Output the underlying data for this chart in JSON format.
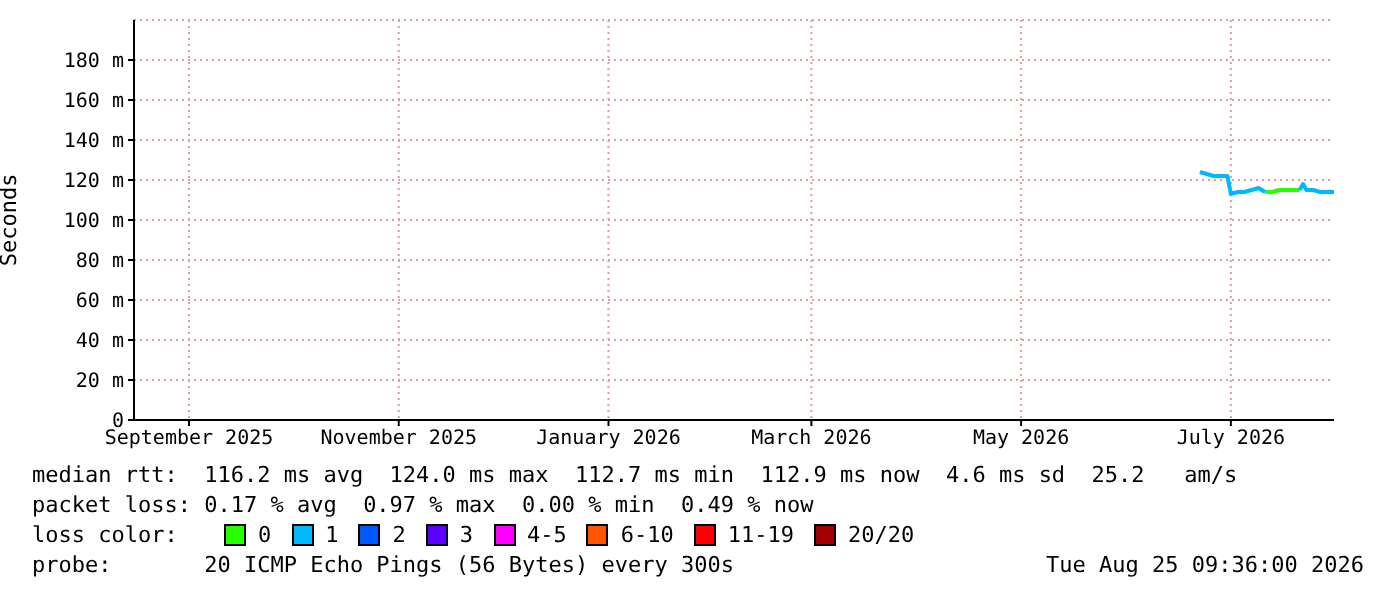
{
  "chart_data": {
    "type": "line",
    "ylabel": "Seconds",
    "legend_title": "loss color:",
    "legend": "bottom",
    "grid": true,
    "marker": "none",
    "line_style": "solid",
    "xlim": [
      "2025-08-16",
      "2026-07-31"
    ],
    "xticks": [
      {
        "value": "2025-09-01",
        "label": "September 2025"
      },
      {
        "value": "2025-11-01",
        "label": "November 2025"
      },
      {
        "value": "2026-01-01",
        "label": "January 2026"
      },
      {
        "value": "2026-03-01",
        "label": "March 2026"
      },
      {
        "value": "2026-05-01",
        "label": "May 2026"
      },
      {
        "value": "2026-07-01",
        "label": "July 2026"
      }
    ],
    "ylim": [
      0,
      200
    ],
    "yticks": [
      0,
      {
        "value": 20,
        "label": "20 m"
      },
      {
        "value": 40,
        "label": "40 m"
      },
      {
        "value": 60,
        "label": "60 m"
      },
      {
        "value": 80,
        "label": "80 m"
      },
      {
        "value": 100,
        "label": "100 m"
      },
      {
        "value": 120,
        "label": "120 m"
      },
      {
        "value": 140,
        "label": "140 m"
      },
      {
        "value": 160,
        "label": "160 m"
      },
      {
        "value": 180,
        "label": "180 m"
      }
    ],
    "x": [
      "2026-06-22",
      "2026-06-24",
      "2026-06-26",
      "2026-06-28",
      "2026-06-30",
      "2026-07-01",
      "2026-07-03",
      "2026-07-05",
      "2026-07-07",
      "2026-07-09",
      "2026-07-11",
      "2026-07-13",
      "2026-07-15",
      "2026-07-17",
      "2026-07-19",
      "2026-07-21",
      "2026-07-22",
      "2026-07-23",
      "2026-07-25",
      "2026-07-27",
      "2026-07-29",
      "2026-07-31"
    ],
    "series": [
      {
        "name": "0",
        "color": "#26ff00",
        "values": [
          null,
          null,
          null,
          null,
          null,
          null,
          null,
          null,
          null,
          null,
          114,
          114,
          115,
          115,
          115,
          115,
          null,
          null,
          null,
          null,
          null,
          null
        ]
      },
      {
        "name": "1",
        "color": "#00b8ff",
        "values": [
          124,
          123,
          122,
          122,
          122,
          113,
          114,
          114,
          115,
          116,
          114,
          null,
          null,
          null,
          null,
          115,
          118,
          115,
          115,
          114,
          114,
          114
        ]
      },
      {
        "name": "2",
        "color": "#0059ff",
        "values": [
          null,
          null,
          null,
          null,
          null,
          null,
          null,
          null,
          null,
          null,
          null,
          null,
          null,
          null,
          null,
          null,
          null,
          null,
          null,
          null,
          null,
          null
        ]
      },
      {
        "name": "3",
        "color": "#5e00ff",
        "values": [
          null,
          null,
          null,
          null,
          null,
          null,
          null,
          null,
          null,
          null,
          null,
          null,
          null,
          null,
          null,
          null,
          null,
          null,
          null,
          null,
          null,
          null
        ]
      },
      {
        "name": "4-5",
        "color": "#ff00ff",
        "values": [
          null,
          null,
          null,
          null,
          null,
          null,
          null,
          null,
          null,
          null,
          null,
          null,
          null,
          null,
          null,
          null,
          null,
          null,
          null,
          null,
          null,
          null
        ]
      },
      {
        "name": "6-10",
        "color": "#ff5500",
        "values": [
          null,
          null,
          null,
          null,
          null,
          null,
          null,
          null,
          null,
          null,
          null,
          null,
          null,
          null,
          null,
          null,
          null,
          null,
          null,
          null,
          null,
          null
        ]
      },
      {
        "name": "11-19",
        "color": "#ff0000",
        "values": [
          null,
          null,
          null,
          null,
          null,
          null,
          null,
          null,
          null,
          null,
          null,
          null,
          null,
          null,
          null,
          null,
          null,
          null,
          null,
          null,
          null,
          null
        ]
      },
      {
        "name": "20/20",
        "color": "#a10000",
        "values": [
          null,
          null,
          null,
          null,
          null,
          null,
          null,
          null,
          null,
          null,
          null,
          null,
          null,
          null,
          null,
          null,
          null,
          null,
          null,
          null,
          null,
          null
        ]
      }
    ],
    "annotations": [
      "median rtt:  116.2 ms avg  124.0 ms max  112.7 ms min  112.9 ms now  4.6 ms sd  25.2   am/s",
      "packet loss: 0.17 % avg  0.97 % max  0.00 % min  0.49 % now",
      "probe:       20 ICMP Echo Pings (56 Bytes) every 300s",
      "Tue Aug 25 09:36:00 2026"
    ]
  }
}
